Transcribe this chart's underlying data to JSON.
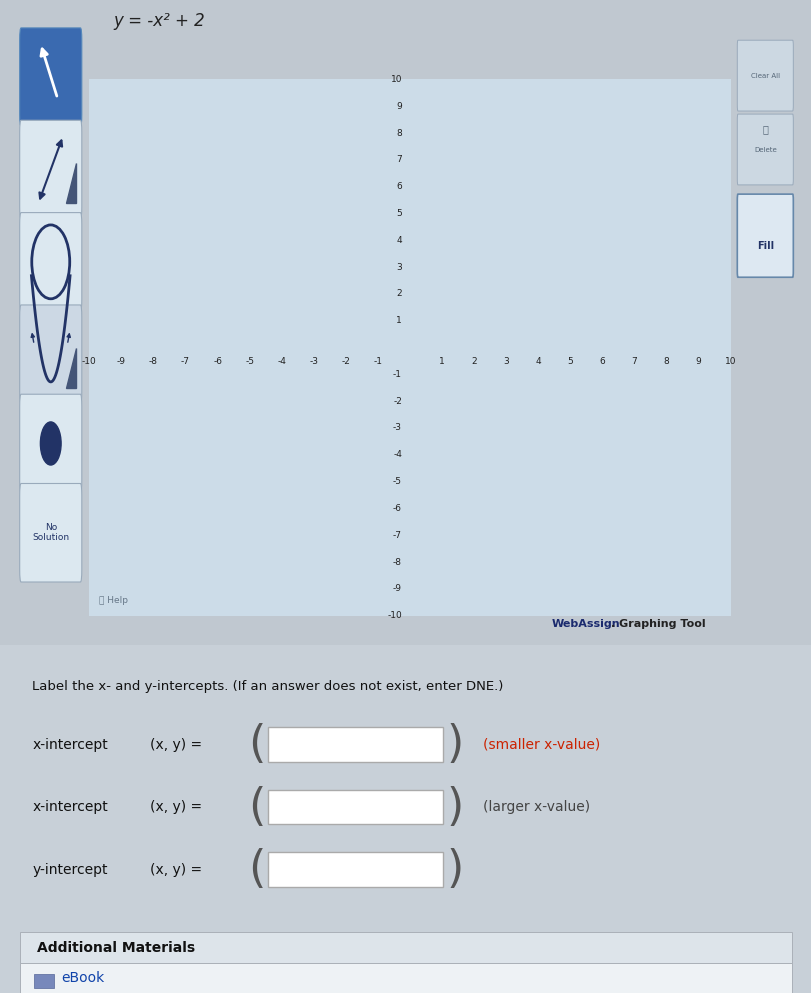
{
  "title": "y = -x² + 2",
  "fig_width": 8.12,
  "fig_height": 9.93,
  "fig_bg_color": "#c0c8d0",
  "graph_bg_color": "#ccdce8",
  "outer_panel_bg": "#b0bcc8",
  "grid_color": "#88aabf",
  "xlim": [
    -10,
    10
  ],
  "ylim": [
    -10,
    10
  ],
  "label_text": "Label the x- and y-intercepts. (If an answer does not exist, enter DNE.)",
  "x_intercept_label1": "x-intercept",
  "x_intercept_label2": "x-intercept",
  "y_intercept_label": "y-intercept",
  "xy_label": "(x, y) =",
  "smaller_x": "(smaller x-value)",
  "larger_x": "(larger x-value)",
  "additional_materials": "Additional Materials",
  "ebook": "eBook",
  "help_text": "Help",
  "no_solution": "No\nSolution",
  "fill_text": "Fill",
  "webassign_bold": "WebAssign",
  "webassign_rest": ". Graphing Tool"
}
